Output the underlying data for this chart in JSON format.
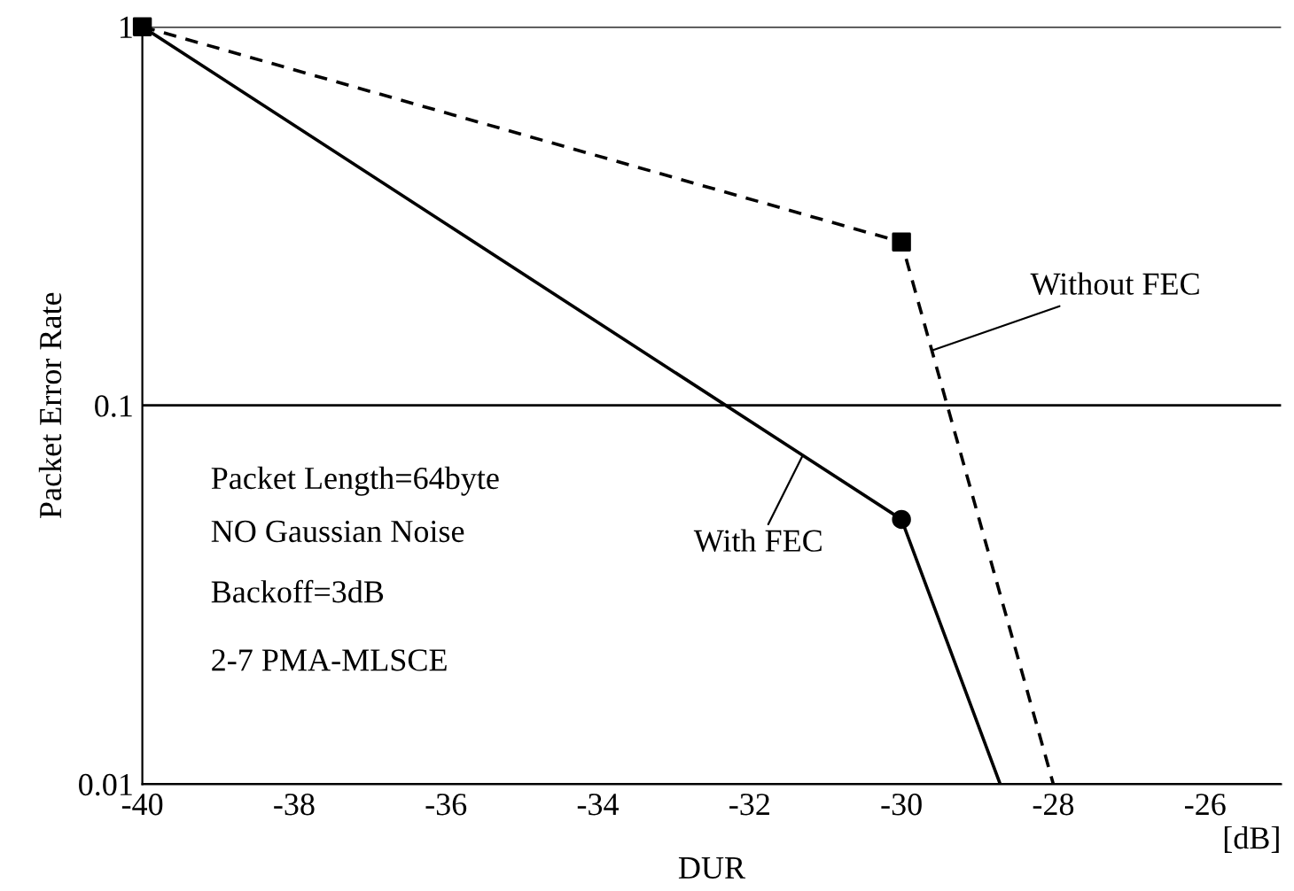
{
  "chart_data": {
    "type": "line",
    "xlabel": "DUR",
    "ylabel": "Packet Error Rate",
    "log": "y",
    "xlim": [
      -40,
      -25
    ],
    "xticks": [
      -40,
      -38,
      -36,
      -34,
      -32,
      -30,
      -28,
      -26
    ],
    "ylim": [
      0.01,
      1
    ],
    "yticks": [
      {
        "value": 0.01,
        "label": "0.01"
      },
      {
        "value": 0.1,
        "label": "0.1"
      },
      {
        "value": 1,
        "label": "1"
      }
    ],
    "grid": "y",
    "series": [
      {
        "name": "With FEC",
        "color": "#000000",
        "line_style": "solid",
        "marker": "none",
        "x": [
          -40,
          -30,
          -28.7
        ],
        "values": [
          1,
          0.05,
          0.01
        ]
      },
      {
        "name": "Without FEC",
        "color": "#000000",
        "line_style": "dashed",
        "marker": "none",
        "x": [
          -40,
          -30,
          -28
        ],
        "values": [
          1,
          0.27,
          0.01
        ]
      },
      {
        "type": "scatter",
        "color": "#000000",
        "marker": "square",
        "x": [
          -40,
          -30
        ],
        "values": [
          1,
          0.27
        ]
      },
      {
        "type": "scatter",
        "color": "#000000",
        "marker": "circle",
        "x": [
          -30
        ],
        "values": [
          0.05
        ]
      }
    ],
    "annotations": [
      "Packet Length=64byte",
      "NO Gaussian Noise",
      "Backoff=3dB",
      "2-7 PMA-MLSCE",
      "[dB]"
    ]
  }
}
